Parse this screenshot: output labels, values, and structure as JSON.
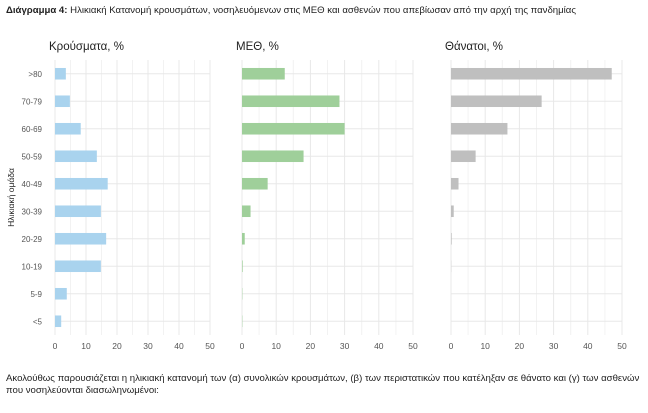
{
  "caption": {
    "label": "Διάγραμμα 4:",
    "text": "Ηλικιακή Κατανομή κρουσμάτων, νοσηλευόμενων στις ΜΕΘ και ασθενών που απεβίωσαν από την αρχή της πανδημίας"
  },
  "footer": {
    "text": "Ακολούθως παρουσιάζεται η ηλικιακή κατανομή των (α) συνολικών κρουσμάτων, (β) των περιστατικών που κατέληξαν σε θάνατο και (γ) των ασθενών που νοσηλεύονται διασωληνωμένοι:"
  },
  "colors": {
    "cases": "#a9d3ee",
    "icu": "#9fcf9a",
    "deaths": "#bfbfbf",
    "grid": "#e8e8e8",
    "tick_text": "#555555"
  },
  "chart_data": {
    "type": "bar",
    "orientation": "horizontal",
    "ylabel": "Ηλικιακή ομάδα",
    "categories": [
      ">80",
      "70-79",
      "60-69",
      "50-59",
      "40-49",
      "30-39",
      "20-29",
      "10-19",
      "5-9",
      "<5"
    ],
    "xlim": [
      0,
      50
    ],
    "xticks": [
      0,
      10,
      20,
      30,
      40,
      50
    ],
    "grid": true,
    "series": [
      {
        "name": "Κρούσματα, %",
        "color": "#a9d3ee",
        "values": [
          3.5,
          4.8,
          8.3,
          13.5,
          17.0,
          14.8,
          16.5,
          14.8,
          3.8,
          2.0
        ]
      },
      {
        "name": "ΜΕΘ, %",
        "color": "#9fcf9a",
        "values": [
          12.5,
          28.5,
          30.0,
          18.0,
          7.5,
          2.5,
          0.8,
          0.2,
          0.1,
          0.1
        ]
      },
      {
        "name": "Θάνατοι, %",
        "color": "#bfbfbf",
        "values": [
          47.0,
          26.5,
          16.5,
          7.2,
          2.2,
          0.8,
          0.2,
          0.05,
          0.0,
          0.0
        ]
      }
    ]
  }
}
